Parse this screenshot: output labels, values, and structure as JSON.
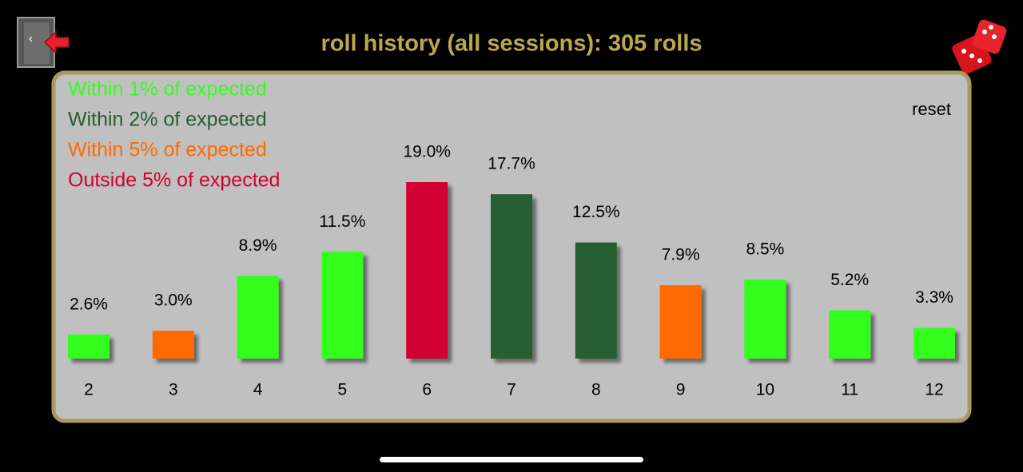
{
  "header": {
    "title": "roll history (all sessions): 305 rolls",
    "reset": "reset"
  },
  "chart_data": {
    "type": "bar",
    "legend": [
      {
        "name": "Within 1% of expected",
        "color": "#33ff1a"
      },
      {
        "name": "Within 2% of expected",
        "color": "#265e30"
      },
      {
        "name": "Within 5% of expected",
        "color": "#ff6a00"
      },
      {
        "name": "Outside 5% of expected",
        "color": "#d20030"
      }
    ],
    "categories": [
      "2",
      "3",
      "4",
      "5",
      "6",
      "7",
      "8",
      "9",
      "10",
      "11",
      "12"
    ],
    "values": [
      2.6,
      3.0,
      8.9,
      11.5,
      19.0,
      17.7,
      12.5,
      7.9,
      8.5,
      5.2,
      3.3
    ],
    "value_labels": [
      "2.6%",
      "3.0%",
      "8.9%",
      "11.5%",
      "19.0%",
      "17.7%",
      "12.5%",
      "7.9%",
      "8.5%",
      "5.2%",
      "3.3%"
    ],
    "colors": [
      "#33ff1a",
      "#ff6a00",
      "#33ff1a",
      "#33ff1a",
      "#d20030",
      "#265e30",
      "#265e30",
      "#ff6a00",
      "#33ff1a",
      "#33ff1a",
      "#33ff1a"
    ]
  }
}
